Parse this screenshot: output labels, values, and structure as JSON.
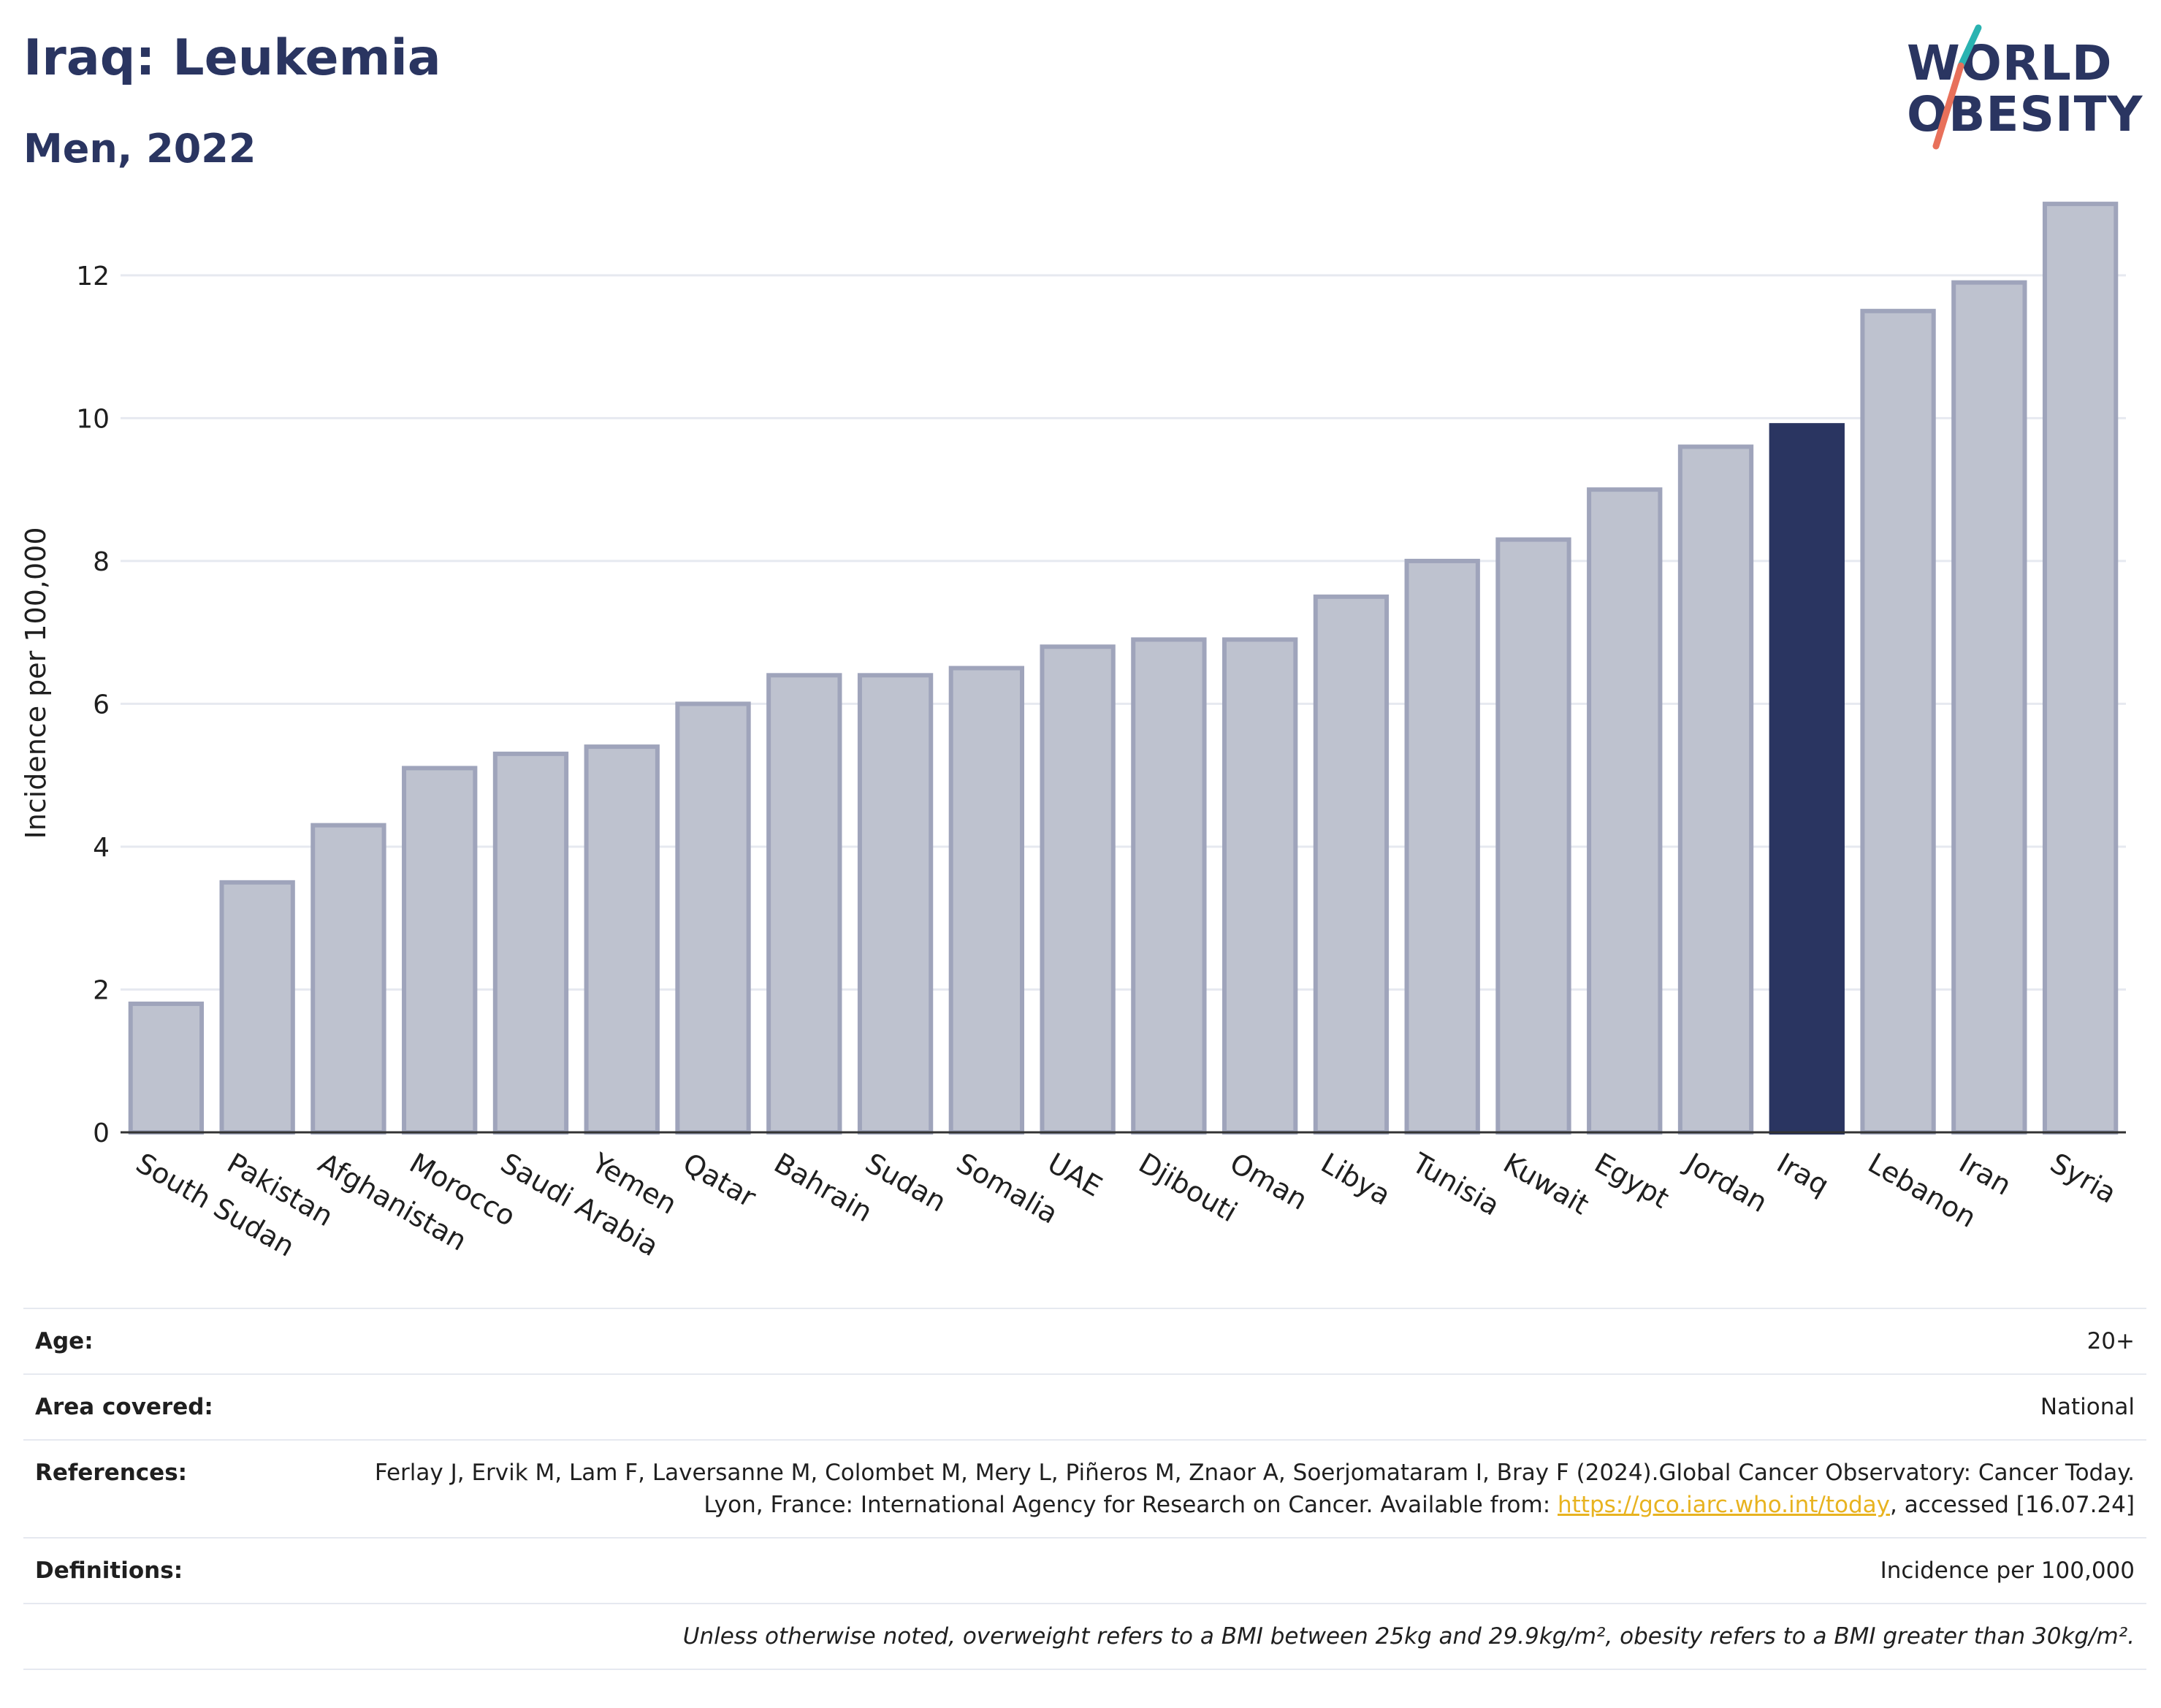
{
  "header": {
    "title": "Iraq: Leukemia",
    "subtitle": "Men, 2022"
  },
  "logo": {
    "line1": "WORLD",
    "line2": "OBESITY",
    "colors": {
      "text": "#2a3561",
      "slash_top": "#2ab3b1",
      "slash_bottom": "#e8705a"
    }
  },
  "chart_data": {
    "type": "bar",
    "title": "",
    "xlabel": "",
    "ylabel": "Incidence per 100,000",
    "ylim": [
      0,
      13.4
    ],
    "yticks": [
      0,
      2,
      4,
      6,
      8,
      10,
      12
    ],
    "grid": true,
    "highlight": "Iraq",
    "colors": {
      "bar": "#bec2cf",
      "bar_border": "#9fa4bb",
      "highlight": "#2a3561",
      "grid": "#e6e9f0"
    },
    "categories": [
      "South Sudan",
      "Pakistan",
      "Afghanistan",
      "Morocco",
      "Saudi Arabia",
      "Yemen",
      "Qatar",
      "Bahrain",
      "Sudan",
      "Somalia",
      "UAE",
      "Djibouti",
      "Oman",
      "Libya",
      "Tunisia",
      "Kuwait",
      "Egypt",
      "Jordan",
      "Iraq",
      "Lebanon",
      "Iran",
      "Syria"
    ],
    "values": [
      1.8,
      3.5,
      4.3,
      5.1,
      5.3,
      5.4,
      6.0,
      6.4,
      6.4,
      6.5,
      6.8,
      6.9,
      6.9,
      7.5,
      8.0,
      8.3,
      9.0,
      9.6,
      9.9,
      11.5,
      11.9,
      13.0
    ]
  },
  "info": {
    "age_label": "Age:",
    "age_value": "20+",
    "area_label": "Area covered:",
    "area_value": "National",
    "references_label": "References:",
    "references_text_1": "Ferlay J, Ervik M, Lam F, Laversanne M, Colombet M, Mery L, Piñeros M, Znaor A, Soerjomataram I, Bray F (2024).Global Cancer Observatory: Cancer Today. Lyon, France: International Agency for Research on Cancer. Available from: ",
    "references_link": "https://gco.iarc.who.int/today",
    "references_text_2": ", accessed [16.07.24]",
    "definitions_label": "Definitions:",
    "definitions_value": "Incidence per 100,000",
    "note": "Unless otherwise noted, overweight refers to a BMI between 25kg and 29.9kg/m², obesity refers to a BMI greater than 30kg/m²."
  }
}
